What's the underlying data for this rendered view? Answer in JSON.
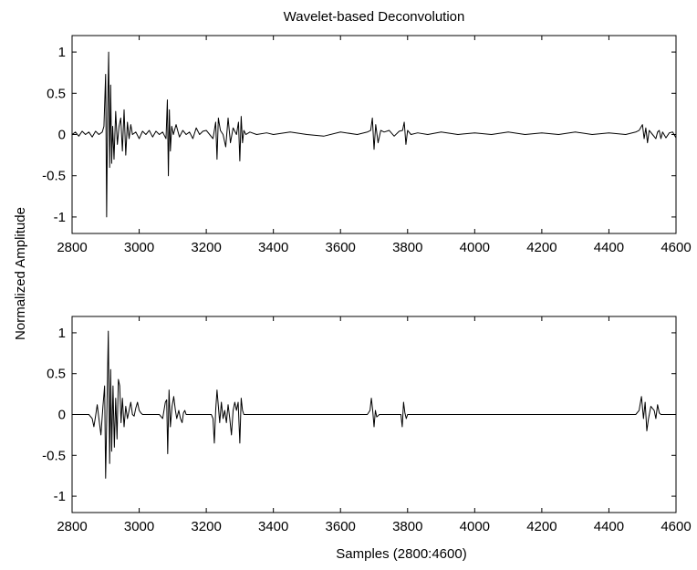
{
  "figure": {
    "title": "Wavelet-based Deconvolution",
    "ylabel": "Normalized Amplitude",
    "xlabel": "Samples (2800:4600)"
  },
  "chart_data": [
    {
      "type": "line",
      "title": "Wavelet-based Deconvolution",
      "xlabel": "",
      "ylabel": "Normalized Amplitude",
      "xlim": [
        2800,
        4600
      ],
      "ylim": [
        -1.2,
        1.2
      ],
      "xticks": [
        2800,
        3000,
        3200,
        3400,
        3600,
        3800,
        4000,
        4200,
        4400,
        4600
      ],
      "yticks": [
        -1,
        -0.5,
        0,
        0.5,
        1
      ],
      "ytick_labels": [
        "-1",
        "-0.5",
        "0",
        "0.5",
        "1"
      ],
      "grid": false,
      "series": [
        {
          "color": "#000000",
          "x": [
            2800,
            2810,
            2820,
            2830,
            2840,
            2850,
            2860,
            2870,
            2880,
            2890,
            2895,
            2900,
            2903,
            2906,
            2909,
            2912,
            2915,
            2918,
            2921,
            2925,
            2930,
            2935,
            2940,
            2945,
            2950,
            2955,
            2960,
            2965,
            2970,
            2975,
            2980,
            2990,
            3000,
            3010,
            3020,
            3030,
            3040,
            3050,
            3060,
            3070,
            3080,
            3084,
            3087,
            3090,
            3093,
            3097,
            3102,
            3110,
            3120,
            3130,
            3140,
            3150,
            3160,
            3170,
            3180,
            3190,
            3200,
            3210,
            3220,
            3228,
            3232,
            3236,
            3242,
            3250,
            3258,
            3265,
            3272,
            3280,
            3290,
            3296,
            3300,
            3304,
            3308,
            3312,
            3318,
            3330,
            3350,
            3380,
            3400,
            3450,
            3500,
            3550,
            3600,
            3650,
            3680,
            3690,
            3695,
            3700,
            3705,
            3712,
            3720,
            3730,
            3745,
            3760,
            3775,
            3785,
            3790,
            3795,
            3800,
            3810,
            3830,
            3860,
            3900,
            3950,
            4000,
            4050,
            4100,
            4150,
            4200,
            4250,
            4300,
            4350,
            4400,
            4450,
            4480,
            4490,
            4500,
            4505,
            4510,
            4515,
            4520,
            4530,
            4540,
            4545,
            4550,
            4555,
            4560,
            4570,
            4580,
            4590,
            4600
          ],
          "y": [
            0,
            0.03,
            -0.02,
            0.04,
            0,
            0.03,
            -0.03,
            0.04,
            0,
            0.03,
            0.1,
            0.73,
            -1.0,
            0.3,
            1.0,
            -0.4,
            0.6,
            -0.35,
            0.1,
            -0.3,
            0.28,
            -0.12,
            0.1,
            0.2,
            -0.2,
            0.3,
            -0.25,
            0.15,
            -0.05,
            0.12,
            0,
            0.03,
            -0.05,
            0.04,
            0,
            0.05,
            -0.03,
            0.04,
            0,
            0.03,
            -0.05,
            0.42,
            -0.5,
            0.3,
            -0.2,
            0.1,
            0,
            0.12,
            -0.03,
            0.05,
            0,
            0.03,
            -0.05,
            0.08,
            0,
            0.04,
            0.05,
            0,
            -0.05,
            0.15,
            -0.3,
            0.2,
            0.05,
            0,
            -0.15,
            0.2,
            -0.1,
            0.08,
            0,
            0.15,
            -0.32,
            0.22,
            -0.1,
            0.05,
            0,
            0.03,
            0,
            0.02,
            0,
            0.03,
            0,
            -0.02,
            0.03,
            0,
            0.03,
            0.05,
            0.2,
            -0.18,
            0.12,
            -0.1,
            0.05,
            0.03,
            0.05,
            -0.02,
            0.04,
            0.05,
            0.15,
            -0.12,
            0.05,
            0,
            0.02,
            0,
            0.03,
            0,
            0.02,
            0,
            0.03,
            0,
            0.02,
            0,
            0.03,
            0,
            0.02,
            0,
            0.03,
            0.05,
            0.12,
            -0.05,
            0.08,
            -0.1,
            0.05,
            0,
            -0.05,
            0.03,
            0.05,
            -0.05,
            0.03,
            -0.04,
            0.02,
            0.03,
            -0.04
          ]
        }
      ]
    },
    {
      "type": "line",
      "title": "",
      "xlabel": "Samples (2800:4600)",
      "ylabel": "Normalized Amplitude",
      "xlim": [
        2800,
        4600
      ],
      "ylim": [
        -1.2,
        1.2
      ],
      "xticks": [
        2800,
        3000,
        3200,
        3400,
        3600,
        3800,
        4000,
        4200,
        4400,
        4600
      ],
      "yticks": [
        -1,
        -0.5,
        0,
        0.5,
        1
      ],
      "ytick_labels": [
        "-1",
        "-0.5",
        "0",
        "0.5",
        "1"
      ],
      "grid": false,
      "series": [
        {
          "color": "#000000",
          "x": [
            2800,
            2850,
            2860,
            2865,
            2870,
            2875,
            2880,
            2886,
            2892,
            2897,
            2900,
            2904,
            2908,
            2912,
            2915,
            2918,
            2922,
            2926,
            2930,
            2934,
            2938,
            2942,
            2946,
            2950,
            2955,
            2960,
            2965,
            2970,
            2975,
            2980,
            2985,
            2990,
            2995,
            3000,
            3005,
            3010,
            3020,
            3040,
            3060,
            3070,
            3078,
            3082,
            3085,
            3089,
            3093,
            3098,
            3103,
            3108,
            3112,
            3118,
            3123,
            3128,
            3132,
            3136,
            3140,
            3160,
            3180,
            3200,
            3215,
            3220,
            3224,
            3228,
            3232,
            3236,
            3240,
            3245,
            3250,
            3255,
            3260,
            3265,
            3270,
            3275,
            3280,
            3285,
            3290,
            3295,
            3300,
            3304,
            3308,
            3312,
            3318,
            3330,
            3400,
            3500,
            3600,
            3680,
            3688,
            3692,
            3696,
            3700,
            3704,
            3708,
            3716,
            3780,
            3784,
            3788,
            3792,
            3796,
            3800,
            3810,
            3900,
            4000,
            4200,
            4400,
            4480,
            4490,
            4497,
            4503,
            4508,
            4513,
            4518,
            4525,
            4535,
            4540,
            4545,
            4550,
            4555,
            4560,
            4600
          ],
          "y": [
            0,
            0,
            -0.05,
            -0.15,
            -0.02,
            0.12,
            -0.05,
            -0.25,
            0.1,
            0.35,
            -0.78,
            0.1,
            1.02,
            -0.6,
            0.55,
            -0.45,
            0.35,
            -0.4,
            0.2,
            -0.3,
            0.43,
            0.35,
            -0.1,
            0.2,
            -0.15,
            0.1,
            -0.05,
            0.05,
            0.15,
            0,
            -0.02,
            0.08,
            0.15,
            0.05,
            0.02,
            0,
            0,
            0,
            0,
            -0.05,
            0.15,
            0.18,
            -0.48,
            0.3,
            -0.15,
            0.1,
            0.22,
            0.05,
            -0.05,
            0.05,
            -0.05,
            -0.1,
            0.02,
            0.05,
            0,
            0,
            0,
            0,
            0,
            -0.05,
            -0.35,
            0.05,
            0.3,
            0.1,
            -0.1,
            0.15,
            -0.05,
            0.05,
            -0.1,
            0.12,
            -0.05,
            -0.25,
            0.05,
            0.15,
            0.05,
            0.15,
            -0.35,
            0.2,
            0.05,
            0,
            0,
            0,
            0,
            0,
            0,
            0,
            0.05,
            0.2,
            0.05,
            -0.15,
            0.05,
            -0.03,
            0,
            0,
            -0.15,
            0.15,
            0.02,
            -0.05,
            0,
            0,
            0,
            0,
            0,
            0,
            0,
            0.05,
            0.22,
            -0.05,
            0.15,
            -0.2,
            -0.05,
            0.1,
            0.05,
            -0.05,
            0.12,
            0.02,
            0,
            0,
            0
          ]
        }
      ]
    }
  ]
}
